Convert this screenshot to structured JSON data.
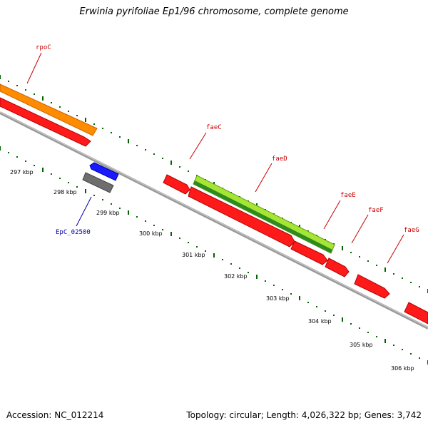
{
  "title": "Erwinia pyrifoliae Ep1/96 chromosome, complete genome",
  "footer": {
    "accession": "Accession: NC_012214",
    "summary": "Topology: circular; Length: 4,026,322 bp; Genes: 3,742"
  },
  "scale_labels": [
    "297 kbp",
    "298 kbp",
    "299 kbp",
    "300 kbp",
    "301 kbp",
    "302 kbp",
    "303 kbp",
    "304 kbp",
    "305 kbp",
    "306 kbp"
  ],
  "gene_labels": {
    "rpoC": "rpoC",
    "faeC": "faeC",
    "faeD": "faeD",
    "faeE": "faeE",
    "faeF": "faeF",
    "faeG": "faeG",
    "epc": "EpC_02500"
  },
  "colors": {
    "backbone": "#8c8c8c",
    "cds": "#ff1a1a",
    "gene_rpoC": "#ff8c00",
    "gene_faeD": "#a6e632",
    "gene_faeD_dark": "#2e8b22",
    "cds_minus": "#1a1aff",
    "pseudo": "#6e6e6e",
    "tick": "#006400",
    "label_red": "#cc0000",
    "label_blue": "#0000aa"
  }
}
